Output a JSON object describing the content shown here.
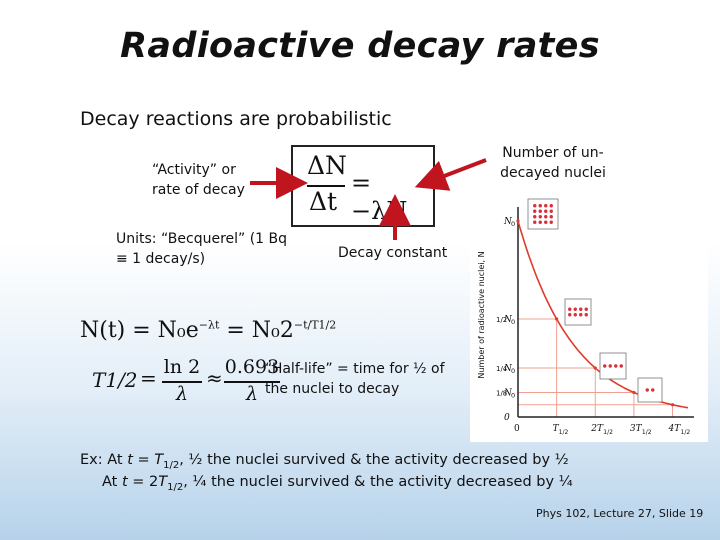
{
  "slide": {
    "title": "Radioactive decay rates",
    "subtitle": "Decay reactions are probabilistic",
    "labels": {
      "activity": "“Activity” or rate of decay",
      "units": "Units: “Becquerel” (1 Bq ≡ 1 decay/s)",
      "decay_constant": "Decay constant",
      "undecayed": "Number of un-decayed nuclei",
      "half_life": "“Half-life” = time for ½ of the nuclei to decay"
    },
    "equations": {
      "rate_lhs_num": "ΔN",
      "rate_lhs_den": "Δt",
      "rate_rhs": "= −λN",
      "decay_law": "N(t) = N₀e",
      "decay_law_exp1": "−λt",
      "decay_law_mid": " = N₀2",
      "decay_law_exp2": "−t/T1/2",
      "halflife_lhs": "T1/2",
      "halflife_num1": "ln 2",
      "halflife_den1": "λ",
      "halflife_num2": "0.693",
      "halflife_den2": "λ"
    },
    "examples": {
      "line1_pre": "Ex: At ",
      "line1_t": "t",
      "line1_eq": " = ",
      "line1_T": "T",
      "line1_sub": "1/2",
      "line1_post": ", ½ the nuclei survived & the activity decreased by ½",
      "line2_pre": "At ",
      "line2_t": "t",
      "line2_eq": " = 2",
      "line2_T": "T",
      "line2_sub": "1/2",
      "line2_post": ", ¼ the nuclei survived & the activity decreased by ¼"
    },
    "footer": "Phys 102, Lecture 27, Slide 19"
  },
  "colors": {
    "arrow": "#c0141e",
    "curve": "#e03a2a",
    "dots": "#d8303a",
    "axis": "#222222"
  },
  "graph": {
    "ylabel": "Number of radioactive nuclei, N",
    "y_ticks": [
      {
        "num": "N",
        "sub": "0",
        "frac": ""
      },
      {
        "num": "N",
        "sub": "0",
        "frac": "1/2"
      },
      {
        "num": "N",
        "sub": "0",
        "frac": "1/4"
      },
      {
        "num": "N",
        "sub": "0",
        "frac": "1/8"
      },
      {
        "num": "0",
        "sub": "",
        "frac": ""
      }
    ],
    "x_ticks": [
      "0",
      "T",
      "2T",
      "3T",
      "4T"
    ],
    "x_tick_sub": "1/2",
    "dot_counts": [
      16,
      8,
      4,
      2
    ]
  },
  "chart_data": {
    "type": "line",
    "x": [
      0,
      1,
      2,
      3,
      4
    ],
    "y": [
      1,
      0.5,
      0.25,
      0.125,
      0.0625
    ]
  }
}
